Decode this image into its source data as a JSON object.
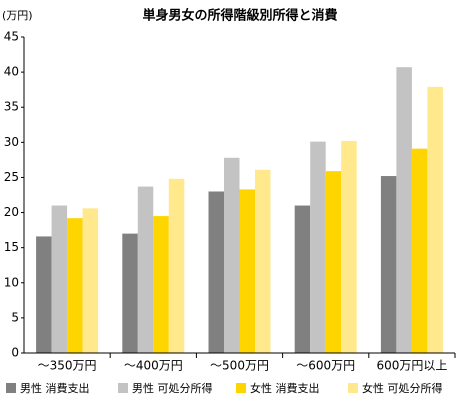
{
  "chart_data": {
    "type": "bar",
    "title": "単身男女の所得階級別所得と消費",
    "y_label": "(万円)",
    "categories": [
      "～350万円",
      "～400万円",
      "～500万円",
      "～600万円",
      "600万円以上"
    ],
    "series": [
      {
        "name": "男性 消費支出",
        "color": "#808080",
        "values": [
          16.6,
          17.0,
          23.0,
          21.0,
          25.2
        ]
      },
      {
        "name": "男性 可処分所得",
        "color": "#c3c3c3",
        "values": [
          21.0,
          23.7,
          27.8,
          30.1,
          40.7
        ]
      },
      {
        "name": "女性 消費支出",
        "color": "#ffd500",
        "values": [
          19.2,
          19.5,
          23.3,
          25.9,
          29.1
        ]
      },
      {
        "name": "女性 可処分所得",
        "color": "#ffe98c",
        "values": [
          20.6,
          24.8,
          26.1,
          30.2,
          37.9
        ]
      }
    ],
    "ylim": [
      0,
      45
    ],
    "yticks": [
      0,
      5,
      10,
      15,
      20,
      25,
      30,
      35,
      40,
      45
    ],
    "grid": false
  }
}
